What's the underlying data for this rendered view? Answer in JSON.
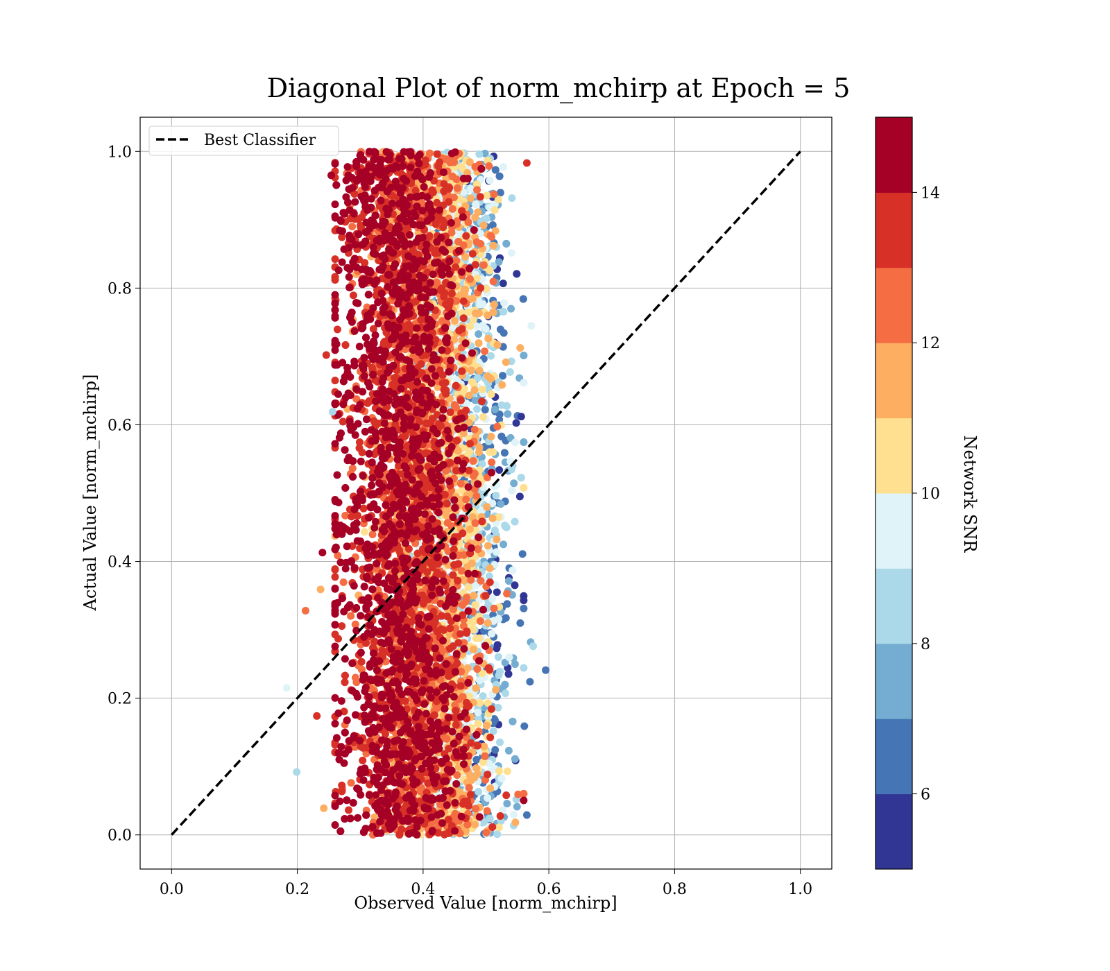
{
  "chart_data": {
    "type": "scatter",
    "title": "Diagonal Plot of norm_mchirp at Epoch = 5",
    "xlabel": "Observed Value [norm_mchirp]",
    "ylabel": "Actual Value [norm_mchirp]",
    "xlim": [
      -0.05,
      1.05
    ],
    "ylim": [
      -0.05,
      1.05
    ],
    "xticks": [
      "0.0",
      "0.2",
      "0.4",
      "0.6",
      "0.8",
      "1.0"
    ],
    "yticks": [
      "0.0",
      "0.2",
      "0.4",
      "0.6",
      "0.8",
      "1.0"
    ],
    "grid": true,
    "legend": {
      "location": "upper-left",
      "entries": [
        "Best Classifier"
      ]
    },
    "reference_line": {
      "name": "Best Classifier",
      "x": [
        0.0,
        1.0
      ],
      "y": [
        0.0,
        1.0
      ],
      "style": "dashed",
      "color": "#000000"
    },
    "colorbar": {
      "label": "Network SNR",
      "range": [
        5,
        15
      ],
      "ticks": [
        "6",
        "8",
        "10",
        "12",
        "14"
      ],
      "levels": [
        5,
        6,
        7,
        8,
        9,
        10,
        11,
        12,
        13,
        14,
        15
      ],
      "colors": [
        "#313695",
        "#4575b4",
        "#74add1",
        "#abd9e9",
        "#e0f3f8",
        "#fee090",
        "#fdae61",
        "#f46d43",
        "#d73027",
        "#a50026"
      ]
    },
    "scatter_summary": {
      "x_range": [
        0.24,
        0.6
      ],
      "y_range": [
        0.0,
        1.0
      ],
      "high_snr_x_center": 0.35,
      "low_snr_x_center": 0.52,
      "outliers": [
        {
          "x": 0.183,
          "y": 0.215,
          "snr": 9.5
        },
        {
          "x": 0.199,
          "y": 0.092,
          "snr": 8.5
        },
        {
          "x": 0.213,
          "y": 0.328,
          "snr": 12.5
        },
        {
          "x": 0.231,
          "y": 0.174,
          "snr": 13.5
        },
        {
          "x": 0.237,
          "y": 0.359,
          "snr": 11.5
        },
        {
          "x": 0.24,
          "y": 0.413,
          "snr": 14.5
        },
        {
          "x": 0.242,
          "y": 0.039,
          "snr": 11.5
        },
        {
          "x": 0.246,
          "y": 0.702,
          "snr": 13.5
        },
        {
          "x": 0.254,
          "y": 0.965,
          "snr": 14.5
        },
        {
          "x": 0.256,
          "y": 0.619,
          "snr": 8.5
        },
        {
          "x": 0.565,
          "y": 0.983,
          "snr": 13.5
        },
        {
          "x": 0.572,
          "y": 0.745,
          "snr": 9.5
        },
        {
          "x": 0.571,
          "y": 0.282,
          "snr": 7.5
        },
        {
          "x": 0.575,
          "y": 0.276,
          "snr": 8.5
        },
        {
          "x": 0.57,
          "y": 0.224,
          "snr": 6.5
        },
        {
          "x": 0.595,
          "y": 0.241,
          "snr": 6.5
        },
        {
          "x": 0.556,
          "y": 0.612,
          "snr": 5.5
        },
        {
          "x": 0.554,
          "y": 0.495,
          "snr": 5.5
        },
        {
          "x": 0.561,
          "y": 0.159,
          "snr": 6.5
        },
        {
          "x": 0.565,
          "y": 0.029,
          "snr": 6.5
        }
      ]
    }
  }
}
